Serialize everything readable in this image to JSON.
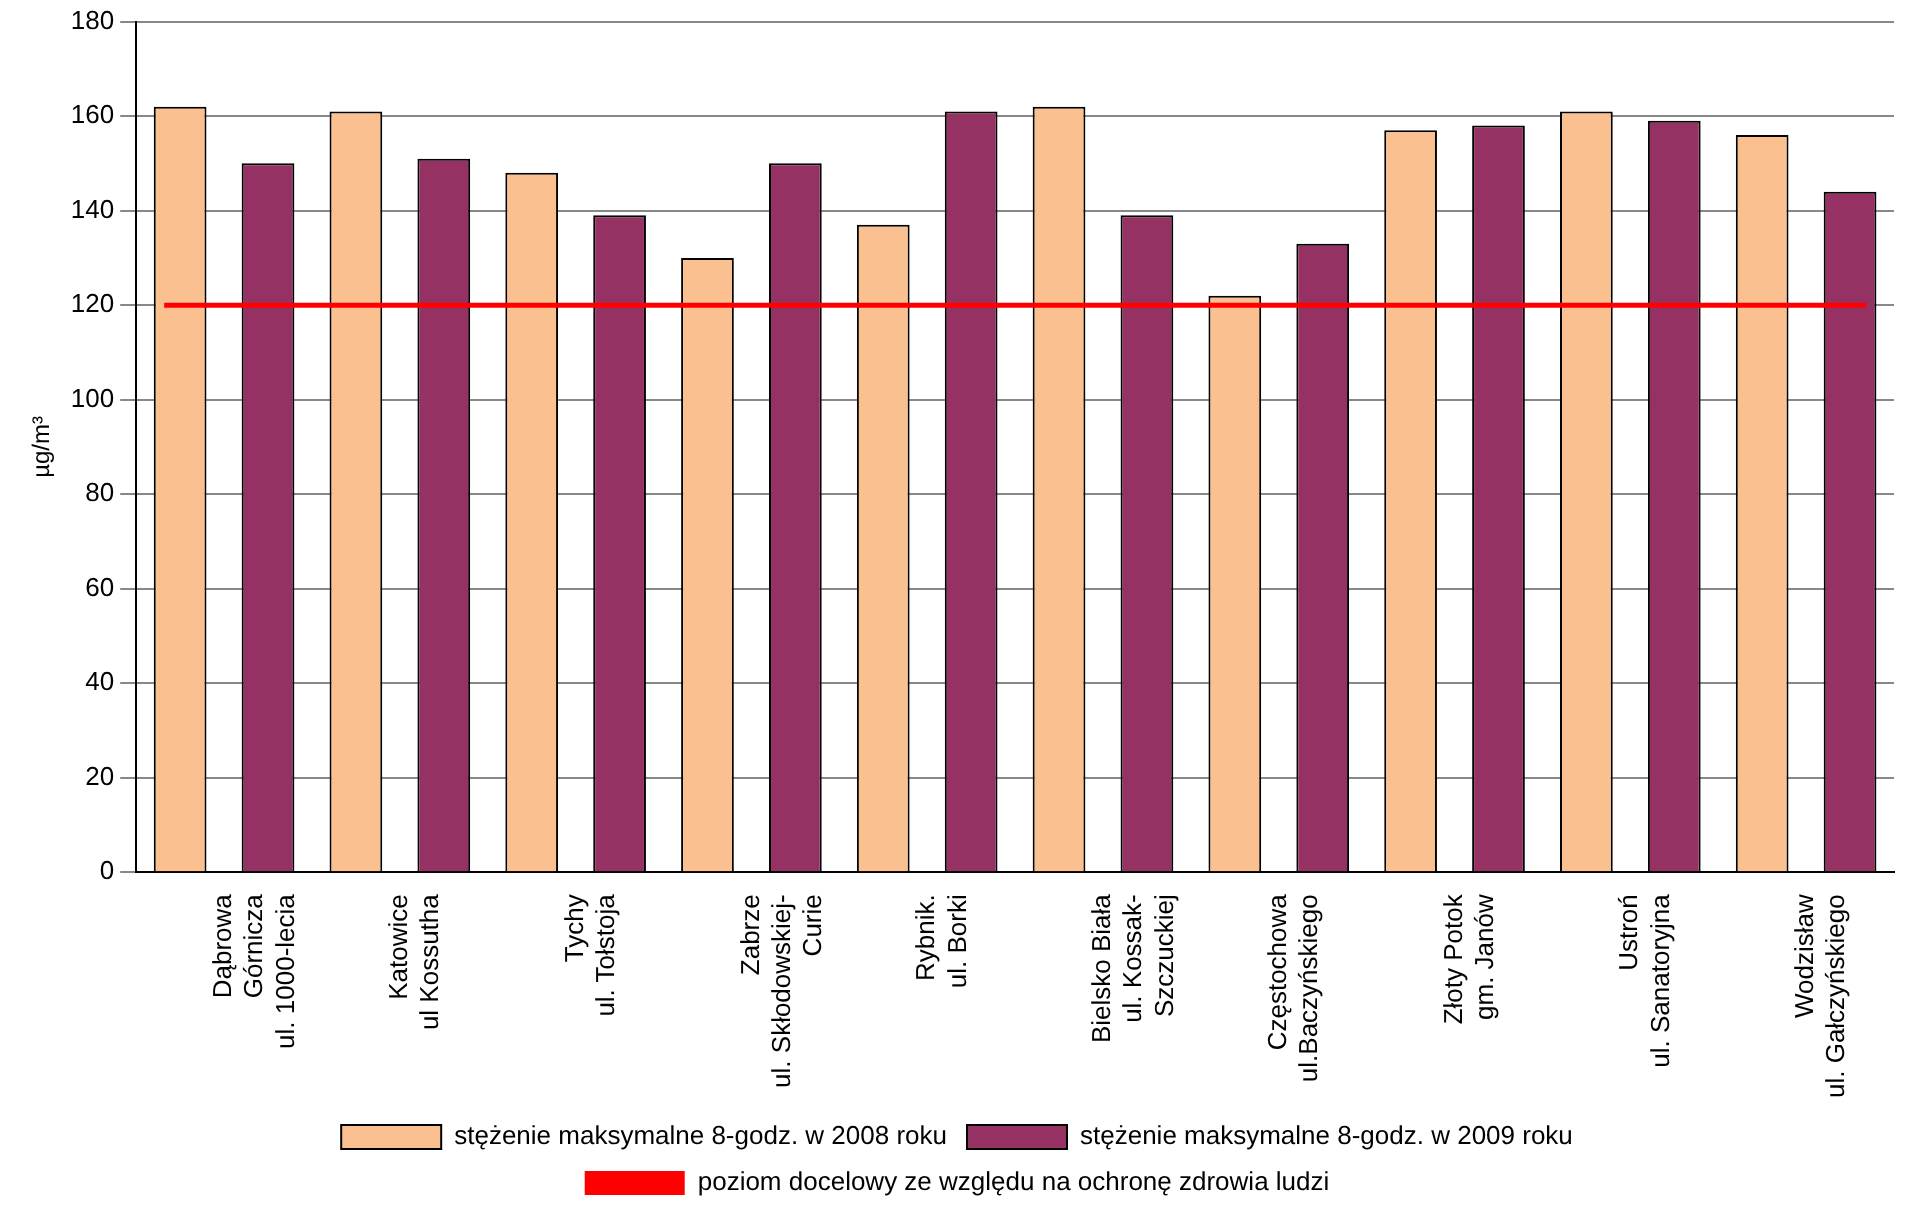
{
  "chart_data": {
    "type": "bar",
    "ylabel": "µg/m³",
    "categories": [
      "Dąbrowa\nGórnicza\nul. 1000-lecia",
      "Katowice\nul Kossutha",
      "Tychy\nul. Tołstoja",
      "Zabrze\nul. Skłodowskiej-\nCurie",
      "Rybnik.\nul. Borki",
      "Bielsko Biała\nul. Kossak-\nSzczuckiej",
      "Częstochowa\nul.Baczyńskiego",
      "Złoty Potok\ngm. Janów",
      "Ustroń\nul. Sanatoryjna",
      "Wodzisław\nul. Gałczyńskiego"
    ],
    "series": [
      {
        "name": "stężenie maksymalne 8-godz. w 2008 roku",
        "color": "#fac090",
        "values": [
          162,
          161,
          148,
          130,
          137,
          162,
          122,
          157,
          161,
          156
        ]
      },
      {
        "name": "stężenie maksymalne 8-godz. w 2009 roku",
        "color": "#953163",
        "values": [
          150,
          151,
          139,
          150,
          161,
          139,
          133,
          158,
          159,
          144
        ]
      }
    ],
    "ref_lines": [
      {
        "axis": "y",
        "value": 120,
        "label": "poziom docelowy ze względu na ochronę zdrowia ludzi",
        "color": "#ff0000"
      }
    ],
    "ylim": [
      0,
      180
    ],
    "yticks": [
      0,
      20,
      40,
      60,
      80,
      100,
      120,
      140,
      160,
      180
    ],
    "grid": "y",
    "legend": "bottom"
  }
}
